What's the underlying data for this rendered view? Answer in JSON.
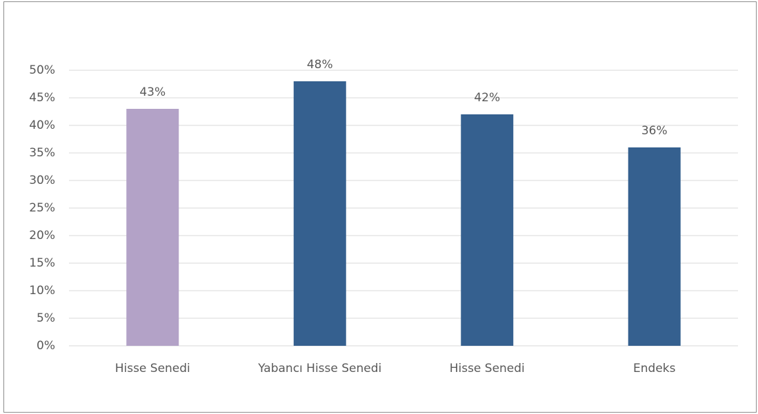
{
  "chart_data": {
    "type": "bar",
    "categories": [
      "Hisse Senedi",
      "Yabancı Hisse Senedi",
      "Hisse Senedi",
      "Endeks"
    ],
    "values": [
      43,
      48,
      42,
      36
    ],
    "value_labels": [
      "43%",
      "48%",
      "42%",
      "36%"
    ],
    "colors": [
      "#b3a2c7",
      "#35608f",
      "#35608f",
      "#35608f"
    ],
    "ylim": [
      0,
      50
    ],
    "yticks": [
      {
        "value": 0,
        "label": "0%"
      },
      {
        "value": 5,
        "label": "5%"
      },
      {
        "value": 10,
        "label": "10%"
      },
      {
        "value": 15,
        "label": "15%"
      },
      {
        "value": 20,
        "label": "20%"
      },
      {
        "value": 25,
        "label": "25%"
      },
      {
        "value": 30,
        "label": "30%"
      },
      {
        "value": 35,
        "label": "35%"
      },
      {
        "value": 40,
        "label": "40%"
      },
      {
        "value": 45,
        "label": "45%"
      },
      {
        "value": 50,
        "label": "50%"
      }
    ],
    "grid": true
  }
}
